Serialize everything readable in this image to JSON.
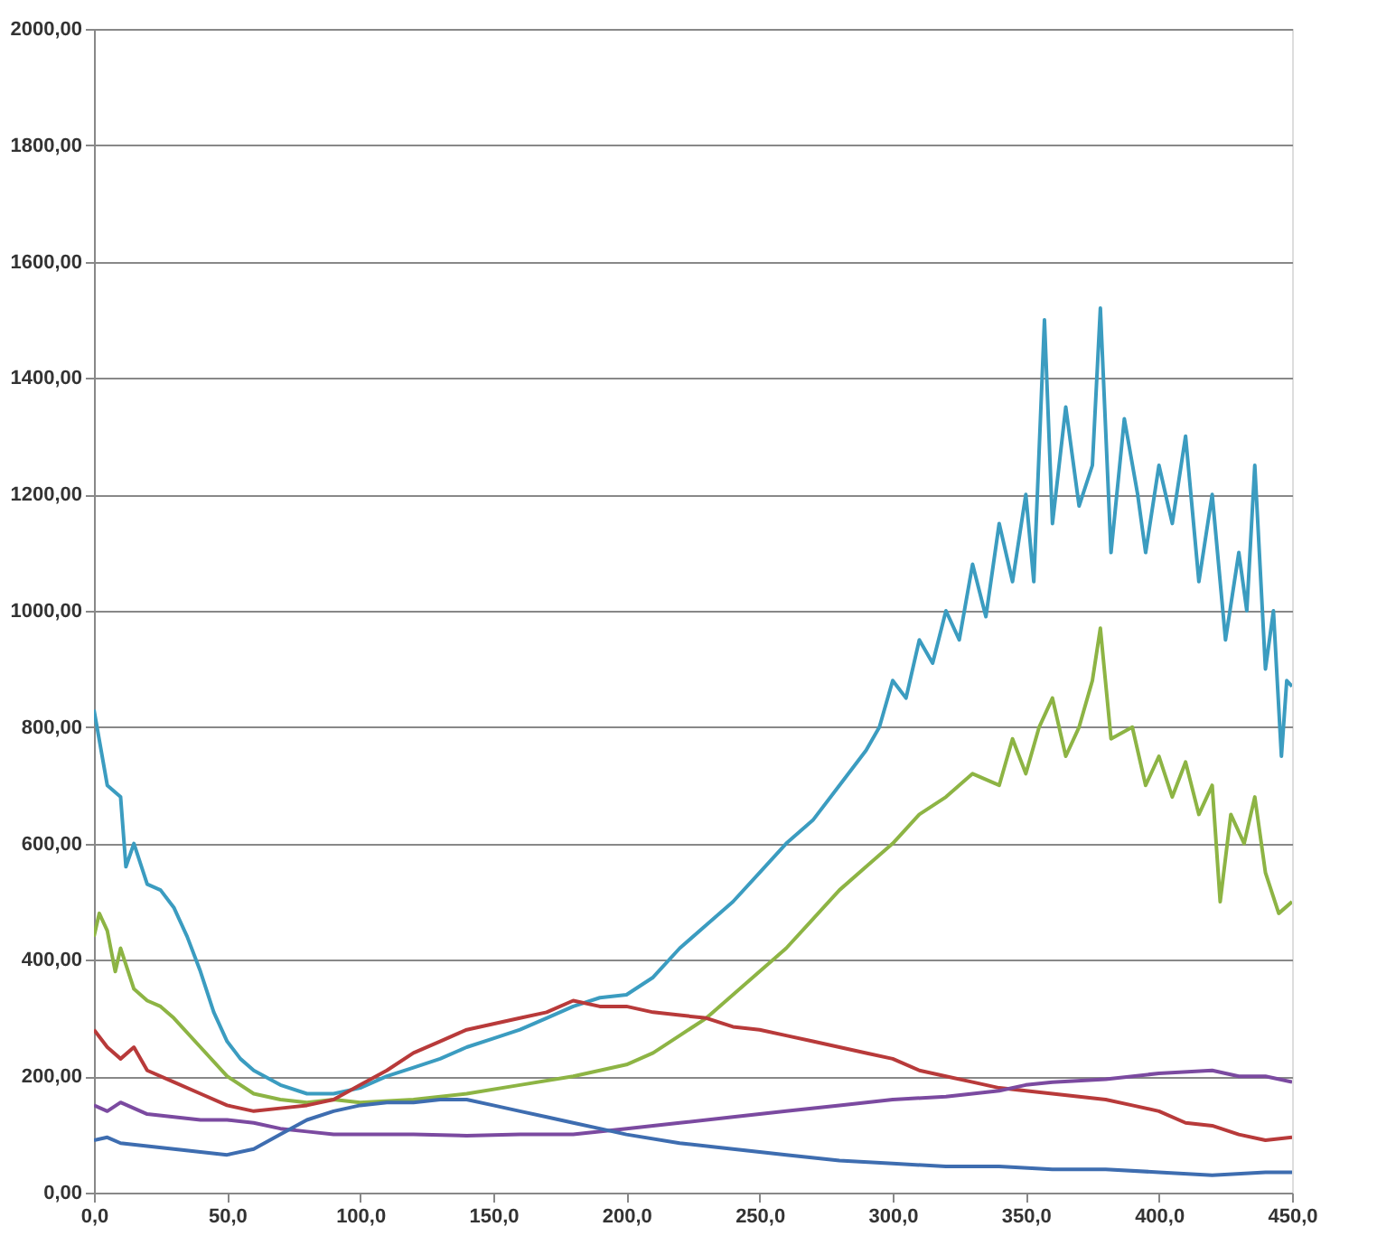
{
  "chart_data": {
    "type": "line",
    "grid": "y",
    "legend": false,
    "line_style": "solid",
    "marker": "none",
    "xlim": [
      0,
      450
    ],
    "ylim": [
      0,
      2000
    ],
    "xticks": [
      {
        "value": 0,
        "label": "0,0"
      },
      {
        "value": 50,
        "label": "50,0"
      },
      {
        "value": 100,
        "label": "100,0"
      },
      {
        "value": 150,
        "label": "150,0"
      },
      {
        "value": 200,
        "label": "200,0"
      },
      {
        "value": 250,
        "label": "250,0"
      },
      {
        "value": 300,
        "label": "300,0"
      },
      {
        "value": 350,
        "label": "350,0"
      },
      {
        "value": 400,
        "label": "400,0"
      },
      {
        "value": 450,
        "label": "450,0"
      }
    ],
    "yticks": [
      {
        "value": 0,
        "label": "0,00"
      },
      {
        "value": 200,
        "label": "200,00"
      },
      {
        "value": 400,
        "label": "400,00"
      },
      {
        "value": 600,
        "label": "600,00"
      },
      {
        "value": 800,
        "label": "800,00"
      },
      {
        "value": 1000,
        "label": "1000,00"
      },
      {
        "value": 1200,
        "label": "1200,00"
      },
      {
        "value": 1400,
        "label": "1400,00"
      },
      {
        "value": 1600,
        "label": "1600,00"
      },
      {
        "value": 1800,
        "label": "1800,00"
      },
      {
        "value": 2000,
        "label": "2000,00"
      }
    ],
    "series": [
      {
        "color": "#3b9cc0",
        "x": [
          0,
          5,
          10,
          12,
          15,
          20,
          25,
          30,
          35,
          40,
          45,
          50,
          55,
          60,
          70,
          80,
          90,
          100,
          110,
          120,
          130,
          140,
          150,
          160,
          170,
          180,
          190,
          200,
          210,
          220,
          230,
          240,
          250,
          260,
          270,
          280,
          290,
          295,
          300,
          305,
          310,
          315,
          320,
          325,
          330,
          335,
          340,
          345,
          350,
          353,
          357,
          360,
          365,
          370,
          375,
          378,
          382,
          387,
          392,
          395,
          400,
          405,
          410,
          415,
          420,
          425,
          430,
          433,
          436,
          440,
          443,
          446,
          448,
          450
        ],
        "values": [
          830,
          700,
          680,
          560,
          600,
          530,
          520,
          490,
          440,
          380,
          310,
          260,
          230,
          210,
          185,
          170,
          170,
          180,
          200,
          215,
          230,
          250,
          265,
          280,
          300,
          320,
          335,
          340,
          370,
          420,
          460,
          500,
          550,
          600,
          640,
          700,
          760,
          800,
          880,
          850,
          950,
          910,
          1000,
          950,
          1080,
          990,
          1150,
          1050,
          1200,
          1050,
          1500,
          1150,
          1350,
          1180,
          1250,
          1520,
          1100,
          1330,
          1200,
          1100,
          1250,
          1150,
          1300,
          1050,
          1200,
          950,
          1100,
          1000,
          1250,
          900,
          1000,
          750,
          880,
          870
        ]
      },
      {
        "color": "#8db444",
        "x": [
          0,
          2,
          5,
          8,
          10,
          15,
          20,
          25,
          30,
          40,
          50,
          60,
          70,
          80,
          90,
          100,
          120,
          140,
          160,
          180,
          200,
          210,
          220,
          230,
          240,
          250,
          260,
          270,
          280,
          290,
          300,
          310,
          320,
          330,
          340,
          345,
          350,
          355,
          360,
          365,
          370,
          375,
          378,
          382,
          390,
          395,
          400,
          405,
          410,
          415,
          420,
          423,
          427,
          432,
          436,
          440,
          445,
          450
        ],
        "values": [
          440,
          480,
          450,
          380,
          420,
          350,
          330,
          320,
          300,
          250,
          200,
          170,
          160,
          155,
          160,
          155,
          160,
          170,
          185,
          200,
          220,
          240,
          270,
          300,
          340,
          380,
          420,
          470,
          520,
          560,
          600,
          650,
          680,
          720,
          700,
          780,
          720,
          800,
          850,
          750,
          800,
          880,
          970,
          780,
          800,
          700,
          750,
          680,
          740,
          650,
          700,
          500,
          650,
          600,
          680,
          550,
          480,
          500
        ]
      },
      {
        "color": "#b83a3a",
        "x": [
          0,
          5,
          10,
          15,
          20,
          30,
          40,
          50,
          60,
          70,
          80,
          90,
          100,
          110,
          120,
          130,
          140,
          150,
          160,
          170,
          180,
          190,
          200,
          210,
          220,
          230,
          240,
          250,
          260,
          270,
          280,
          290,
          300,
          310,
          320,
          330,
          340,
          350,
          360,
          370,
          380,
          390,
          400,
          410,
          420,
          430,
          440,
          450
        ],
        "values": [
          280,
          250,
          230,
          250,
          210,
          190,
          170,
          150,
          140,
          145,
          150,
          160,
          185,
          210,
          240,
          260,
          280,
          290,
          300,
          310,
          330,
          320,
          320,
          310,
          305,
          300,
          285,
          280,
          270,
          260,
          250,
          240,
          230,
          210,
          200,
          190,
          180,
          175,
          170,
          165,
          160,
          150,
          140,
          120,
          115,
          100,
          90,
          95
        ]
      },
      {
        "color": "#7b4aa0",
        "x": [
          0,
          5,
          10,
          20,
          30,
          40,
          50,
          60,
          70,
          80,
          90,
          100,
          120,
          140,
          160,
          180,
          200,
          220,
          240,
          260,
          280,
          300,
          320,
          340,
          350,
          360,
          380,
          400,
          420,
          430,
          440,
          450
        ],
        "values": [
          150,
          140,
          155,
          135,
          130,
          125,
          125,
          120,
          110,
          105,
          100,
          100,
          100,
          98,
          100,
          100,
          110,
          120,
          130,
          140,
          150,
          160,
          165,
          175,
          185,
          190,
          195,
          205,
          210,
          200,
          200,
          190
        ]
      },
      {
        "color": "#3e6db0",
        "x": [
          0,
          5,
          10,
          20,
          30,
          40,
          50,
          60,
          70,
          80,
          90,
          100,
          110,
          120,
          130,
          140,
          150,
          160,
          170,
          180,
          190,
          200,
          220,
          240,
          260,
          280,
          300,
          320,
          340,
          360,
          380,
          400,
          420,
          440,
          450
        ],
        "values": [
          90,
          95,
          85,
          80,
          75,
          70,
          65,
          75,
          100,
          125,
          140,
          150,
          155,
          155,
          160,
          160,
          150,
          140,
          130,
          120,
          110,
          100,
          85,
          75,
          65,
          55,
          50,
          45,
          45,
          40,
          40,
          35,
          30,
          35,
          35
        ]
      }
    ]
  }
}
